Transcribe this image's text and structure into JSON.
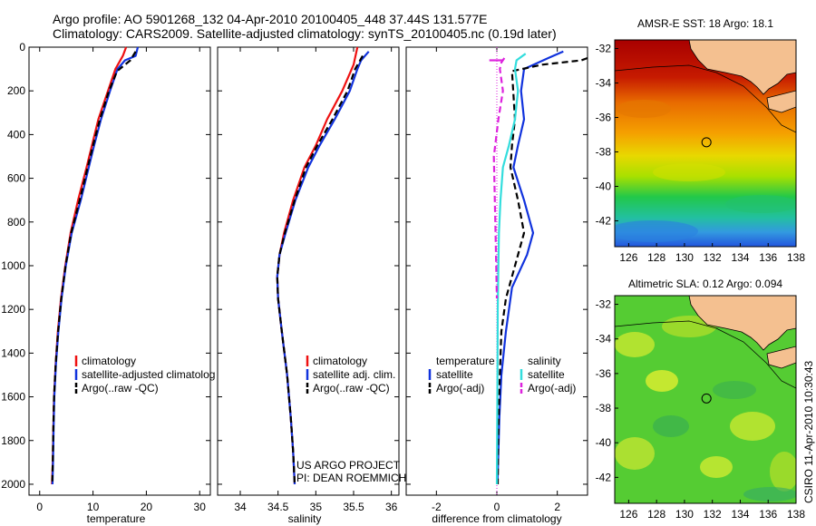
{
  "header": {
    "line1": "Argo profile: AO 5901268_132 04-Apr-2010 20100405_448 37.44S 131.577E",
    "line2": "Climatology: CARS2009. Satellite-adjusted climatology: synTS_20100405.nc (0.19d later)"
  },
  "credit": {
    "line1": "US ARGO PROJECT",
    "line2": "PI: DEAN ROEMMICH"
  },
  "side_label": "CSIRO 11-Apr-2010 10:30:43",
  "colors": {
    "red": "#ee1111",
    "blue": "#1133dd",
    "black": "#000000",
    "cyan": "#33dddd",
    "magenta": "#dd22dd",
    "land": "#f4c090",
    "sst_low": "#2266dd",
    "sst_high": "#b80000",
    "sla": "#55cc33"
  },
  "chart_data": [
    {
      "id": "temperature",
      "type": "line",
      "xlabel": "temperature",
      "xlim": [
        -2,
        32
      ],
      "ylim": [
        0,
        2050
      ],
      "xticks": [
        0,
        10,
        20,
        30
      ],
      "yticks": [
        0,
        200,
        400,
        600,
        800,
        1000,
        1200,
        1400,
        1600,
        1800,
        2000
      ],
      "legend": [
        "climatology",
        "satellite-adjusted climatolog",
        "Argo(..raw -QC)"
      ],
      "series": [
        {
          "name": "climatology",
          "color": "red",
          "dash": false,
          "x": [
            16.2,
            15.6,
            14.2,
            12.8,
            11.0,
            9.8,
            8.8,
            7.2,
            5.8,
            4.8,
            4.0,
            3.4,
            3.0,
            2.7,
            2.55,
            2.45,
            2.3
          ],
          "y": [
            0,
            40,
            100,
            200,
            330,
            450,
            550,
            700,
            850,
            1000,
            1150,
            1300,
            1450,
            1600,
            1750,
            1900,
            2000
          ]
        },
        {
          "name": "satellite-adjusted climatolog",
          "color": "blue",
          "dash": false,
          "x": [
            18.4,
            18.0,
            16.0,
            14.6,
            13.2,
            11.5,
            10.2,
            9.2,
            7.7,
            6.0,
            4.9,
            4.1,
            3.5,
            3.05,
            2.75,
            2.6,
            2.5,
            2.4
          ],
          "y": [
            0,
            40,
            60,
            100,
            200,
            330,
            450,
            550,
            700,
            850,
            1000,
            1150,
            1300,
            1450,
            1600,
            1750,
            1900,
            2000
          ]
        },
        {
          "name": "Argo(..raw -QC)",
          "color": "black",
          "dash": true,
          "x": [
            18.0,
            17.0,
            14.5,
            13.0,
            11.3,
            10.0,
            9.0,
            7.5,
            5.9,
            4.85,
            4.05,
            3.45,
            3.0,
            2.7,
            2.55,
            2.45,
            2.35
          ],
          "y": [
            20,
            60,
            110,
            200,
            330,
            450,
            550,
            700,
            850,
            1000,
            1150,
            1300,
            1450,
            1600,
            1750,
            1900,
            2000
          ]
        }
      ]
    },
    {
      "id": "salinity",
      "type": "line",
      "xlabel": "salinity",
      "xlim": [
        33.7,
        36.1
      ],
      "ylim": [
        0,
        2050
      ],
      "xticks": [
        34,
        34.5,
        35,
        35.5,
        36
      ],
      "legend": [
        "climatology",
        "satellite adj. clim.",
        "Argo(..raw -QC)"
      ],
      "series": [
        {
          "name": "climatology",
          "color": "red",
          "dash": false,
          "x": [
            35.55,
            35.5,
            35.35,
            35.15,
            35.0,
            34.85,
            34.7,
            34.58,
            34.52,
            34.49,
            34.5,
            34.55,
            34.62,
            34.67,
            34.7,
            34.72
          ],
          "y": [
            0,
            80,
            200,
            330,
            450,
            550,
            700,
            850,
            950,
            1050,
            1150,
            1300,
            1500,
            1700,
            1850,
            2000
          ]
        },
        {
          "name": "satellite adj. clim.",
          "color": "blue",
          "dash": false,
          "x": [
            35.7,
            35.6,
            35.55,
            35.45,
            35.25,
            35.05,
            34.9,
            34.73,
            34.6,
            34.52,
            34.49,
            34.5,
            34.55,
            34.62,
            34.67,
            34.7,
            34.72
          ],
          "y": [
            20,
            60,
            100,
            200,
            330,
            450,
            550,
            700,
            850,
            950,
            1050,
            1150,
            1300,
            1500,
            1700,
            1850,
            2000
          ]
        },
        {
          "name": "Argo(..raw -QC)",
          "color": "black",
          "dash": true,
          "x": [
            35.62,
            35.52,
            35.42,
            35.22,
            35.02,
            34.87,
            34.72,
            34.59,
            34.52,
            34.49,
            34.5,
            34.55,
            34.62,
            34.67,
            34.7,
            34.72
          ],
          "y": [
            40,
            100,
            200,
            330,
            450,
            550,
            700,
            850,
            950,
            1050,
            1150,
            1300,
            1500,
            1700,
            1850,
            2000
          ]
        }
      ]
    },
    {
      "id": "difference",
      "type": "line",
      "xlabel": "difference from climatology",
      "xlim": [
        -3,
        3
      ],
      "ylim": [
        0,
        2050
      ],
      "xticks": [
        -2,
        0,
        2
      ],
      "legend_temp_title": "temperature",
      "legend_sal_title": "salinity",
      "legend": [
        "satellite",
        "Argo(-adj)",
        "satellite",
        "Argo(-adj)"
      ],
      "series": [
        {
          "name": "satellite",
          "group": "temperature",
          "color": "blue",
          "dash": false,
          "x": [
            2.2,
            1.7,
            0.9,
            0.8,
            0.9,
            0.7,
            0.55,
            0.9,
            1.2,
            1.0,
            0.5,
            0.3,
            0.15,
            0.08,
            0.05,
            0.03,
            0.02
          ],
          "y": [
            20,
            50,
            100,
            200,
            330,
            450,
            550,
            700,
            850,
            950,
            1100,
            1300,
            1500,
            1700,
            1850,
            1950,
            2000
          ]
        },
        {
          "name": "Argo(-adj)",
          "group": "temperature",
          "color": "black",
          "dash": true,
          "x": [
            3.0,
            2.8,
            1.5,
            0.5,
            0.6,
            0.5,
            0.45,
            0.7,
            0.9,
            0.6,
            0.3,
            0.15,
            0.1,
            0.06,
            0.04,
            0.03
          ],
          "y": [
            50,
            60,
            80,
            110,
            330,
            450,
            550,
            700,
            850,
            1000,
            1150,
            1300,
            1500,
            1700,
            1850,
            2000
          ]
        },
        {
          "name": "satellite",
          "group": "salinity",
          "color": "cyan",
          "dash": false,
          "x": [
            0.95,
            0.65,
            0.6,
            0.7,
            0.6,
            0.4,
            0.2,
            0.12,
            0.07,
            0.05,
            0.03,
            0.02,
            0.01,
            0.0
          ],
          "y": [
            30,
            60,
            100,
            200,
            330,
            450,
            550,
            700,
            850,
            1000,
            1200,
            1500,
            1800,
            2000
          ]
        },
        {
          "name": "Argo(-adj)",
          "group": "salinity",
          "color": "magenta",
          "dash": true,
          "x": [
            0.25,
            0.15,
            0.1,
            0.2,
            0.05,
            -0.1,
            -0.05,
            -0.02,
            0.0
          ],
          "y": [
            50,
            70,
            100,
            200,
            330,
            500,
            800,
            1000,
            1150
          ]
        },
        {
          "name": "Argo(-adj)",
          "group": "salinity-top",
          "color": "magenta",
          "dash": false,
          "x": [
            -0.25,
            0.2
          ],
          "y": [
            60,
            60
          ]
        }
      ]
    },
    {
      "id": "sst_map",
      "type": "heatmap",
      "title": "AMSR-E SST: 18 Argo: 18.1",
      "xlim": [
        125,
        138
      ],
      "ylim": [
        -43.5,
        -31.5
      ],
      "xticks": [
        126,
        128,
        130,
        132,
        134,
        136,
        138
      ],
      "yticks": [
        -32,
        -34,
        -36,
        -38,
        -40,
        -42
      ],
      "marker": {
        "lon": 131.577,
        "lat": -37.44
      }
    },
    {
      "id": "sla_map",
      "type": "heatmap",
      "title": "Altimetric SLA: 0.12 Argo: 0.094",
      "xlim": [
        125,
        138
      ],
      "ylim": [
        -43.5,
        -31.5
      ],
      "xticks": [
        126,
        128,
        130,
        132,
        134,
        136,
        138
      ],
      "yticks": [
        -32,
        -34,
        -36,
        -38,
        -40,
        -42
      ],
      "marker": {
        "lon": 131.577,
        "lat": -37.44
      }
    }
  ]
}
